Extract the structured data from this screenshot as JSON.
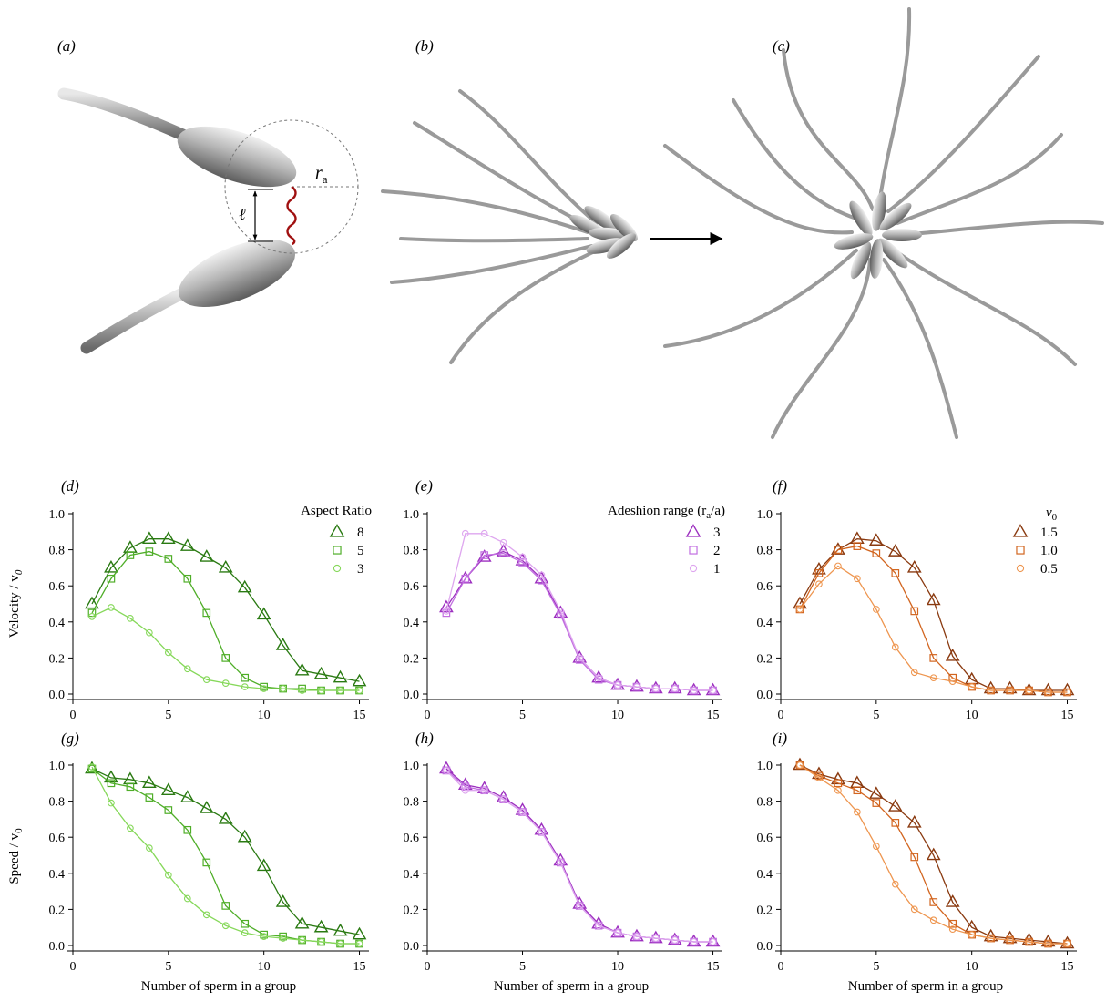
{
  "panels": {
    "a": "(a)",
    "b": "(b)",
    "c": "(c)",
    "d": "(d)",
    "e": "(e)",
    "f": "(f)",
    "g": "(g)",
    "h": "(h)",
    "i": "(i)"
  },
  "illustration": {
    "ra_label": "r",
    "ra_subscript": "a",
    "ell_label": "ℓ"
  },
  "axis_titles": {
    "velocity": "Velocity / v",
    "velocity_sub": "0",
    "speed": "Speed / v",
    "speed_sub": "0",
    "xlabel": "Number of sperm in a group"
  },
  "legends": {
    "aspect": {
      "title": "Aspect Ratio"
    },
    "adhesion": {
      "title": "Adeshion range (r",
      "title_sub": "a",
      "title_end": "/a)"
    },
    "v0": {
      "title": "v",
      "title_sub": "0"
    }
  },
  "colors": {
    "green": [
      "#2a7a12",
      "#4fae28",
      "#86d85a"
    ],
    "purple": [
      "#9c2fbf",
      "#c16ee0",
      "#dea6ef"
    ],
    "orange": [
      "#8a3a10",
      "#d2651f",
      "#ee9650"
    ]
  },
  "chart_data": [
    {
      "id": "d",
      "type": "line",
      "ylabel": "Velocity / v0",
      "xlabel": "",
      "xlim": [
        0,
        15.5
      ],
      "ylim": [
        0,
        1.0
      ],
      "xticks": [
        0,
        5,
        10,
        15
      ],
      "yticks": [
        0.0,
        0.2,
        0.4,
        0.6,
        0.8,
        1.0
      ],
      "legend_title": "Aspect Ratio",
      "legend": "top-right",
      "series": [
        {
          "name": "8",
          "marker": "triangle",
          "x": [
            1,
            2,
            3,
            4,
            5,
            6,
            7,
            8,
            9,
            10,
            11,
            12,
            13,
            14,
            15
          ],
          "y": [
            0.5,
            0.7,
            0.81,
            0.86,
            0.86,
            0.82,
            0.76,
            0.7,
            0.59,
            0.44,
            0.27,
            0.13,
            0.11,
            0.09,
            0.07
          ]
        },
        {
          "name": "5",
          "marker": "square",
          "x": [
            1,
            2,
            3,
            4,
            5,
            6,
            7,
            8,
            9,
            10,
            11,
            12,
            13,
            14,
            15
          ],
          "y": [
            0.45,
            0.64,
            0.77,
            0.79,
            0.75,
            0.64,
            0.45,
            0.2,
            0.09,
            0.04,
            0.03,
            0.03,
            0.02,
            0.02,
            0.02
          ]
        },
        {
          "name": "3",
          "marker": "circle",
          "x": [
            1,
            2,
            3,
            4,
            5,
            6,
            7,
            8,
            9,
            10,
            11,
            12,
            13,
            14,
            15
          ],
          "y": [
            0.43,
            0.48,
            0.42,
            0.34,
            0.23,
            0.14,
            0.08,
            0.06,
            0.04,
            0.03,
            0.03,
            0.02,
            0.02,
            0.02,
            0.02
          ]
        }
      ]
    },
    {
      "id": "e",
      "type": "line",
      "ylabel": "",
      "xlabel": "",
      "xlim": [
        0,
        15.5
      ],
      "ylim": [
        0,
        1.0
      ],
      "xticks": [
        0,
        5,
        10,
        15
      ],
      "yticks": [
        0.0,
        0.2,
        0.4,
        0.6,
        0.8,
        1.0
      ],
      "legend_title": "Adeshion range (ra/a)",
      "legend": "top-right",
      "series": [
        {
          "name": "3",
          "marker": "triangle",
          "x": [
            1,
            2,
            3,
            4,
            5,
            6,
            7,
            8,
            9,
            10,
            11,
            12,
            13,
            14,
            15
          ],
          "y": [
            0.48,
            0.64,
            0.76,
            0.79,
            0.74,
            0.64,
            0.45,
            0.2,
            0.09,
            0.05,
            0.04,
            0.03,
            0.03,
            0.02,
            0.02
          ]
        },
        {
          "name": "2",
          "marker": "square",
          "x": [
            1,
            2,
            3,
            4,
            5,
            6,
            7,
            8,
            9,
            10,
            11,
            12,
            13,
            14,
            15
          ],
          "y": [
            0.45,
            0.64,
            0.77,
            0.78,
            0.73,
            0.63,
            0.44,
            0.19,
            0.08,
            0.05,
            0.04,
            0.03,
            0.03,
            0.02,
            0.02
          ]
        },
        {
          "name": "1",
          "marker": "circle",
          "x": [
            1,
            2,
            3,
            4,
            5,
            6,
            7,
            8,
            9,
            10,
            11,
            12,
            13,
            14,
            15
          ],
          "y": [
            0.46,
            0.89,
            0.89,
            0.84,
            0.76,
            0.66,
            0.46,
            0.2,
            0.09,
            0.05,
            0.04,
            0.03,
            0.03,
            0.02,
            0.02
          ]
        }
      ]
    },
    {
      "id": "f",
      "type": "line",
      "ylabel": "",
      "xlabel": "",
      "xlim": [
        0,
        15.5
      ],
      "ylim": [
        0,
        1.0
      ],
      "xticks": [
        0,
        5,
        10,
        15
      ],
      "yticks": [
        0.0,
        0.2,
        0.4,
        0.6,
        0.8,
        1.0
      ],
      "legend_title": "v0",
      "legend": "top-right",
      "series": [
        {
          "name": "1.5",
          "marker": "triangle",
          "x": [
            1,
            2,
            3,
            4,
            5,
            6,
            7,
            8,
            9,
            10,
            11,
            12,
            13,
            14,
            15
          ],
          "y": [
            0.5,
            0.69,
            0.8,
            0.86,
            0.85,
            0.79,
            0.7,
            0.52,
            0.21,
            0.08,
            0.03,
            0.03,
            0.02,
            0.02,
            0.02
          ]
        },
        {
          "name": "1.0",
          "marker": "square",
          "x": [
            1,
            2,
            3,
            4,
            5,
            6,
            7,
            8,
            9,
            10,
            11,
            12,
            13,
            14,
            15
          ],
          "y": [
            0.47,
            0.67,
            0.8,
            0.82,
            0.78,
            0.67,
            0.46,
            0.2,
            0.09,
            0.04,
            0.02,
            0.02,
            0.02,
            0.01,
            0.01
          ]
        },
        {
          "name": "0.5",
          "marker": "circle",
          "x": [
            1,
            2,
            3,
            4,
            5,
            6,
            7,
            8,
            9,
            10,
            11,
            12,
            13,
            14,
            15
          ],
          "y": [
            0.47,
            0.61,
            0.71,
            0.64,
            0.47,
            0.26,
            0.12,
            0.09,
            0.07,
            0.04,
            0.02,
            0.02,
            0.02,
            0.01,
            0.01
          ]
        }
      ]
    },
    {
      "id": "g",
      "type": "line",
      "ylabel": "Speed / v0",
      "xlabel": "Number of sperm in a group",
      "xlim": [
        0,
        15.5
      ],
      "ylim": [
        0,
        1.0
      ],
      "xticks": [
        0,
        5,
        10,
        15
      ],
      "yticks": [
        0.0,
        0.2,
        0.4,
        0.6,
        0.8,
        1.0
      ],
      "series": [
        {
          "name": "8",
          "marker": "triangle",
          "x": [
            1,
            2,
            3,
            4,
            5,
            6,
            7,
            8,
            9,
            10,
            11,
            12,
            13,
            14,
            15
          ],
          "y": [
            0.98,
            0.93,
            0.92,
            0.9,
            0.86,
            0.82,
            0.76,
            0.7,
            0.6,
            0.44,
            0.24,
            0.12,
            0.1,
            0.08,
            0.06
          ]
        },
        {
          "name": "5",
          "marker": "square",
          "x": [
            1,
            2,
            3,
            4,
            5,
            6,
            7,
            8,
            9,
            10,
            11,
            12,
            13,
            14,
            15
          ],
          "y": [
            0.98,
            0.9,
            0.88,
            0.82,
            0.75,
            0.64,
            0.46,
            0.22,
            0.12,
            0.06,
            0.05,
            0.03,
            0.02,
            0.01,
            0.01
          ]
        },
        {
          "name": "3",
          "marker": "circle",
          "x": [
            1,
            2,
            3,
            4,
            5,
            6,
            7,
            8,
            9,
            10,
            11,
            12,
            13,
            14,
            15
          ],
          "y": [
            0.99,
            0.79,
            0.65,
            0.54,
            0.39,
            0.26,
            0.17,
            0.11,
            0.07,
            0.05,
            0.04,
            0.03,
            0.02,
            0.01,
            0.01
          ]
        }
      ]
    },
    {
      "id": "h",
      "type": "line",
      "ylabel": "",
      "xlabel": "Number of sperm in a group",
      "xlim": [
        0,
        15.5
      ],
      "ylim": [
        0,
        1.0
      ],
      "xticks": [
        0,
        5,
        10,
        15
      ],
      "yticks": [
        0.0,
        0.2,
        0.4,
        0.6,
        0.8,
        1.0
      ],
      "series": [
        {
          "name": "3",
          "marker": "triangle",
          "x": [
            1,
            2,
            3,
            4,
            5,
            6,
            7,
            8,
            9,
            10,
            11,
            12,
            13,
            14,
            15
          ],
          "y": [
            0.98,
            0.89,
            0.87,
            0.82,
            0.75,
            0.64,
            0.47,
            0.23,
            0.12,
            0.07,
            0.05,
            0.04,
            0.03,
            0.02,
            0.02
          ]
        },
        {
          "name": "2",
          "marker": "square",
          "x": [
            1,
            2,
            3,
            4,
            5,
            6,
            7,
            8,
            9,
            10,
            11,
            12,
            13,
            14,
            15
          ],
          "y": [
            0.97,
            0.88,
            0.86,
            0.81,
            0.74,
            0.63,
            0.46,
            0.22,
            0.11,
            0.07,
            0.05,
            0.04,
            0.03,
            0.02,
            0.02
          ]
        },
        {
          "name": "1",
          "marker": "circle",
          "x": [
            1,
            2,
            3,
            4,
            5,
            6,
            7,
            8,
            9,
            10,
            11,
            12,
            13,
            14,
            15
          ],
          "y": [
            0.97,
            0.86,
            0.86,
            0.81,
            0.74,
            0.63,
            0.46,
            0.22,
            0.11,
            0.07,
            0.05,
            0.04,
            0.03,
            0.02,
            0.02
          ]
        }
      ]
    },
    {
      "id": "i",
      "type": "line",
      "ylabel": "",
      "xlabel": "Number of sperm in a group",
      "xlim": [
        0,
        15.5
      ],
      "ylim": [
        0,
        1.0
      ],
      "xticks": [
        0,
        5,
        10,
        15
      ],
      "yticks": [
        0.0,
        0.2,
        0.4,
        0.6,
        0.8,
        1.0
      ],
      "series": [
        {
          "name": "1.5",
          "marker": "triangle",
          "x": [
            1,
            2,
            3,
            4,
            5,
            6,
            7,
            8,
            9,
            10,
            11,
            12,
            13,
            14,
            15
          ],
          "y": [
            1.0,
            0.95,
            0.92,
            0.9,
            0.84,
            0.77,
            0.68,
            0.5,
            0.24,
            0.1,
            0.05,
            0.04,
            0.03,
            0.02,
            0.01
          ]
        },
        {
          "name": "1.0",
          "marker": "square",
          "x": [
            1,
            2,
            3,
            4,
            5,
            6,
            7,
            8,
            9,
            10,
            11,
            12,
            13,
            14,
            15
          ],
          "y": [
            1.0,
            0.94,
            0.9,
            0.86,
            0.79,
            0.68,
            0.49,
            0.24,
            0.12,
            0.06,
            0.04,
            0.03,
            0.02,
            0.01,
            0.01
          ]
        },
        {
          "name": "0.5",
          "marker": "circle",
          "x": [
            1,
            2,
            3,
            4,
            5,
            6,
            7,
            8,
            9,
            10,
            11,
            12,
            13,
            14,
            15
          ],
          "y": [
            1.0,
            0.93,
            0.86,
            0.74,
            0.55,
            0.34,
            0.2,
            0.14,
            0.09,
            0.06,
            0.04,
            0.03,
            0.02,
            0.01,
            0.01
          ]
        }
      ]
    }
  ]
}
